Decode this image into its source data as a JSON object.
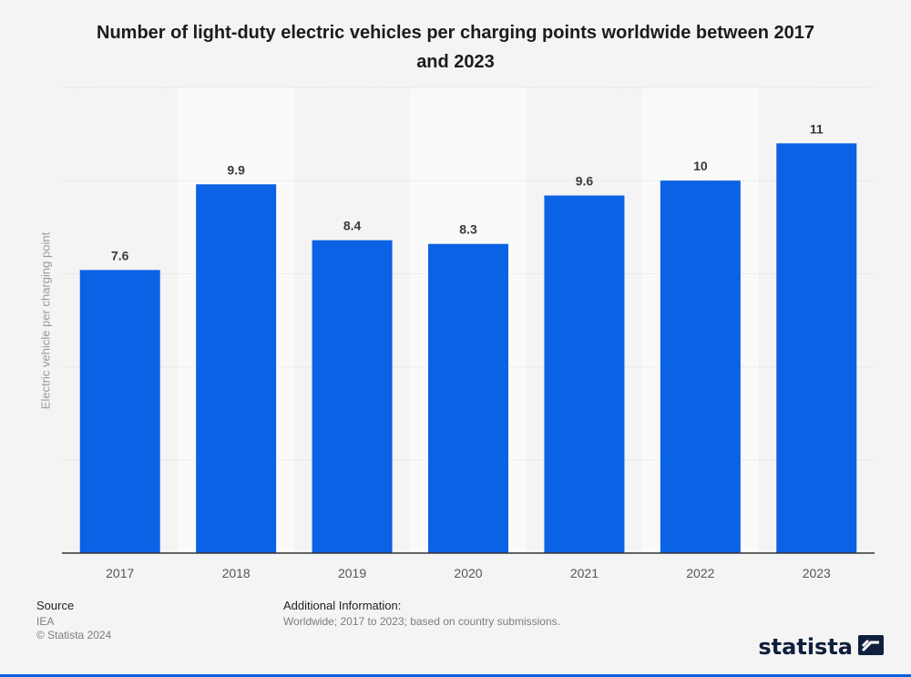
{
  "chart_data": {
    "type": "bar",
    "title": "Number of light-duty electric vehicles per charging points worldwide between 2017 and 2023",
    "categories": [
      "2017",
      "2018",
      "2019",
      "2020",
      "2021",
      "2022",
      "2023"
    ],
    "values": [
      7.6,
      9.9,
      8.4,
      8.3,
      9.6,
      10,
      11
    ],
    "value_labels": [
      "7.6",
      "9.9",
      "8.4",
      "8.3",
      "9.6",
      "10",
      "11"
    ],
    "xlabel": "",
    "ylabel": "Electric vehicle per charging point",
    "ylim": [
      0,
      12.5
    ],
    "grid": true,
    "bar_color": "#0b62e4"
  },
  "footer": {
    "source_label": "Source",
    "source_value": "IEA",
    "copyright": "© Statista 2024",
    "info_label": "Additional Information:",
    "info_value": "Worldwide; 2017 to 2023; based on country submissions."
  },
  "brand": {
    "name": "statista",
    "icon": "statista-logo-icon"
  }
}
